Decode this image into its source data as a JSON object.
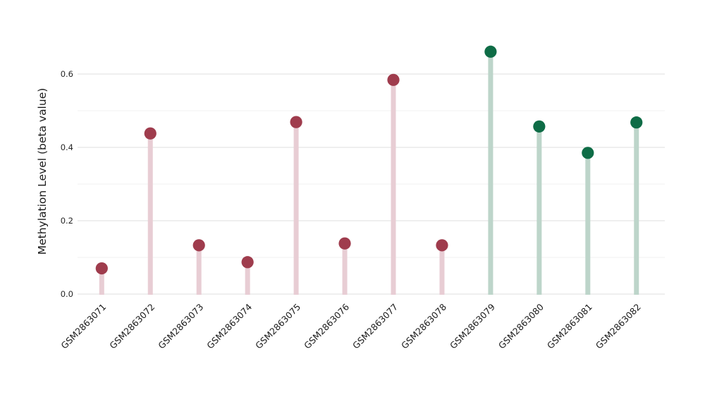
{
  "chart_data": {
    "type": "scatter",
    "variant": "lollipop-stem",
    "title": "",
    "xlabel": "",
    "ylabel": "Methylation Level (beta value)",
    "categories": [
      "GSM2863071",
      "GSM2863072",
      "GSM2863073",
      "GSM2863074",
      "GSM2863075",
      "GSM2863076",
      "GSM2863077",
      "GSM2863078",
      "GSM2863079",
      "GSM2863080",
      "GSM2863081",
      "GSM2863082"
    ],
    "values": [
      0.07,
      0.438,
      0.133,
      0.087,
      0.469,
      0.138,
      0.584,
      0.133,
      0.661,
      0.457,
      0.385,
      0.468
    ],
    "point_groups": [
      0,
      0,
      0,
      0,
      0,
      0,
      0,
      0,
      1,
      1,
      1,
      1
    ],
    "group_styles": [
      {
        "name": "maroon-group",
        "dot_color": "#9f3c4d",
        "stem_color": "#e8cdd4"
      },
      {
        "name": "green-group",
        "dot_color": "#0e6c46",
        "stem_color": "#bdd5ca"
      }
    ],
    "yticks": [
      0.0,
      0.2,
      0.4,
      0.6
    ],
    "ytick_labels": [
      "0.0",
      "0.2",
      "0.4",
      "0.6"
    ],
    "minor_gridlines": [
      0.1,
      0.3,
      0.5
    ],
    "ylim": [
      -0.033,
      0.694
    ],
    "grid": true,
    "legend": false,
    "colors": {
      "background": "#ffffff",
      "major_gridline": "#e5e5e5",
      "minor_gridline": "#f2f2f2",
      "tick_label": "#262626",
      "axis_label": "#1a1a1a"
    }
  }
}
